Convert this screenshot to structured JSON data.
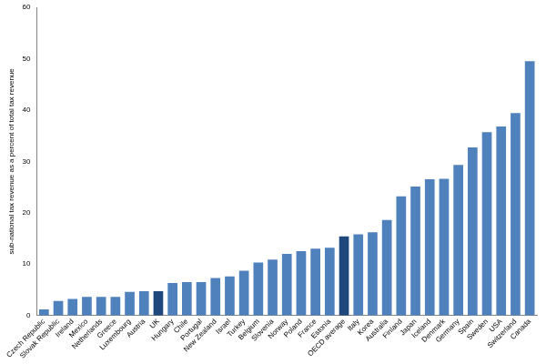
{
  "chart_data": {
    "type": "bar",
    "y_label": "sub-national tax revenue as a percent of total tax revenue",
    "categories": [
      "Czech Republic",
      "Slovak Republic",
      "Ireland",
      "Mexico",
      "Netherlands",
      "Greece",
      "Luxembourg",
      "Austria",
      "UK",
      "Hungary",
      "Chile",
      "Portugal",
      "New Zealand",
      "Israel",
      "Turkey",
      "Belgium",
      "Slovenia",
      "Norway",
      "Poland",
      "France",
      "Estonia",
      "OECD average",
      "Italy",
      "Korea",
      "Australia",
      "Finland",
      "Japan",
      "Iceland",
      "Denmark",
      "Germany",
      "Spain",
      "Sweden",
      "USA",
      "Switzerland",
      "Canada"
    ],
    "values": [
      1.2,
      2.8,
      3.2,
      3.6,
      3.6,
      3.6,
      4.6,
      4.7,
      4.7,
      6.3,
      6.5,
      6.5,
      7.3,
      7.6,
      8.7,
      10.3,
      10.9,
      12.0,
      12.5,
      13.0,
      13.2,
      15.4,
      15.8,
      16.2,
      18.6,
      23.2,
      25.1,
      26.5,
      26.6,
      29.3,
      32.7,
      35.7,
      36.8,
      39.4,
      49.5
    ],
    "colors": [
      "#4f81bd",
      "#4f81bd",
      "#4f81bd",
      "#4f81bd",
      "#4f81bd",
      "#4f81bd",
      "#4f81bd",
      "#4f81bd",
      "#1f497d",
      "#4f81bd",
      "#4f81bd",
      "#4f81bd",
      "#4f81bd",
      "#4f81bd",
      "#4f81bd",
      "#4f81bd",
      "#4f81bd",
      "#4f81bd",
      "#4f81bd",
      "#4f81bd",
      "#4f81bd",
      "#1f497d",
      "#4f81bd",
      "#4f81bd",
      "#4f81bd",
      "#4f81bd",
      "#4f81bd",
      "#4f81bd",
      "#4f81bd",
      "#4f81bd",
      "#4f81bd",
      "#4f81bd",
      "#4f81bd",
      "#4f81bd",
      "#4f81bd"
    ],
    "ylim": [
      0,
      60
    ],
    "yticks": [
      0,
      10,
      20,
      30,
      40,
      50,
      60
    ],
    "grid": false
  }
}
